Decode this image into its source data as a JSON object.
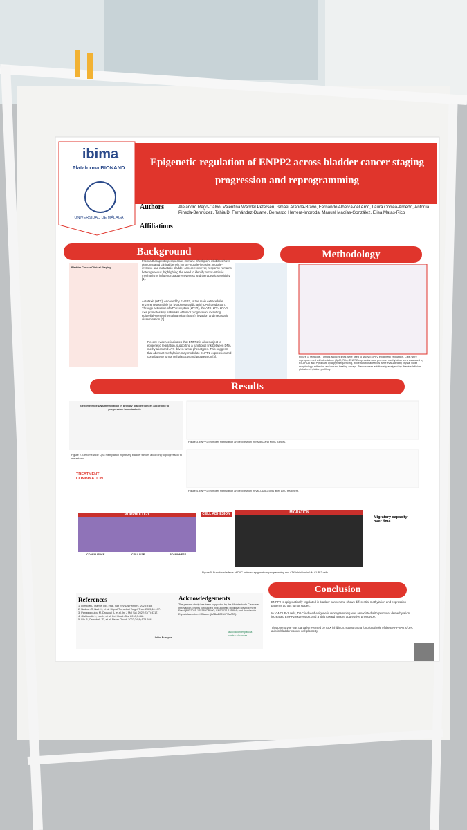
{
  "poster": {
    "logo": {
      "name": "ibima",
      "platform": "Plataforma BIONAND",
      "university": "UNIVERSIDAD DE MÁLAGA"
    },
    "title": "Epigenetic regulation of ENPP2 across bladder cancer staging progression and reprogramming",
    "authors_label": "Authors",
    "authors": "Alejandro Rego-Calvo, Valentina Wandel Petersen, Ismael Aranda-Bravo, Fernando Alberca-del Arco, Laura Correa-Arnedo, Antonia Pineda-Bermúdez, Tahia D. Fernández-Duarte, Bernardo Herrera-Imbroda, Manuel Macías-González, Elisa Matas-Rico",
    "affiliations_label": "Affiliations",
    "background": {
      "heading": "Background",
      "figure_label": "Bladder Cancer Clinical Staging",
      "paragraphs": [
        "From a therapeutic perspective, immune-checkpoint inhibitors have demonstrated clinical benefit in non-muscle-invasive, muscle-invasive and metastatic bladder cancer. However, response remains heterogeneous, highlighting the need to identify tumor-intrinsic mechanisms influencing aggressiveness and therapeutic sensitivity [1].",
        "Autotaxin (ATX), encoded by ENPP2, is the main extracellular enzyme responsible for lysophosphatidic acid (LPA) production. Through activation of LPA receptors (LPAR), the ATX–LPA–LPAR axis promotes key hallmarks of tumor progression, including epithelial–mesenchymal transition (EMT), invasion and metastatic dissemination [2].",
        "Recent evidence indicates that ENPP2 is also subject to epigenetic regulation, supporting a functional link between DNA methylation and ATX-driven tumor phenotypes. This suggests that aberrant methylation may modulate ENPP2 expression and contribute to tumor cell plasticity and progression [3]."
      ]
    },
    "methodology": {
      "heading": "Methodology",
      "caption": "Figure 1. Methods. Tumors and cell lines were used to study ENPP2 epigenetic regulation. Cells were reprogrammed with decitabine (5μM, 72h). ENPP2 expression and promoter methylation were assessed by RT-qPCR and PyroMark Q48 pyrosequencing, while functional effects were evaluated by crystal violet morphology, adhesion and wound-healing assays. Tumors were additionally analyzed by Illumina Infinium global methylation profiling."
    },
    "results": {
      "heading": "Results",
      "figure2_title": "Genome-wide DNA methylation in primary bladder tumors according to progression to metastasis",
      "figure2_caption": "Figure 2. Genome-wide CpG methylation in primary bladder tumors according to progression to metastasis.",
      "figure3_caption": "Figure 3. ENPP2 promoter methylation and expression in NMIBC and MIBC tumors.",
      "figure4_caption": "Figure 4. ENPP2 promoter methylation and expression in VM-CUB-2 cells after DAC treatment.",
      "treatment": "TREATMENT COMBINATION",
      "morphology": "MORPHOLOGY",
      "adhesion": "CELL ADHESION",
      "migration": "MIGRATION",
      "migratory": "Migratory capacity over time",
      "confluence": "CONFLUENCE",
      "cell_size": "CELL SIZE",
      "roundness": "ROUNDNESS",
      "figure5_caption": "Figure 5. Functional effects of DAC-induced epigenetic reprogramming and ATX inhibition in VM-CUB-2 cells."
    },
    "conclusion": {
      "heading": "Conclusion",
      "bullets": [
        "ENPP2 is epigenetically regulated in bladder cancer and shows differential methylation and expression patterns across tumor stages.",
        "In VM-CUB-2 cells, DAC-induced epigenetic reprogramming was associated with promoter demethylation, increased ENPP2 expression, and a shift toward a more aggressive phenotype.",
        "This phenotype was partially reversed by ATX inhibition, supporting a functional role of the ENPP2/ATX/LPA axis in bladder cancer cell plasticity."
      ]
    },
    "references": {
      "heading": "References",
      "items": [
        "1. Dyrskjøt L, Hansel DE, et al. Nat Rev Dis Primers. 2023;9:58.",
        "2. Nadhan R, Nath K, et al. Signal Transduct Target Ther. 2025;10:177.",
        "3. Panagopoulou M, Drosouli A, et al. Int J Mol Sci. 2022;23(7):3717.",
        "4. Gialitsiodis L, Lee L, et al. Cell Death Dis. 2018;9:468.",
        "5. Wu R, Campbell JD, et al. Neuro Oncol. 2022;24(4):573-584."
      ]
    },
    "acknowledgements": {
      "heading": "Acknowledgements",
      "text": "The present study has been supported by the Ministerio de Ciencia e Innovación, grants cofounded by European Regional Development Fund (PID2021-125385OB-I00; CNS2022-135884) and Asociación Española contra el Cáncer (LABAE223479MATA).",
      "eu": "Unión Europea",
      "aecc": "asociación española contra el cáncer"
    }
  }
}
